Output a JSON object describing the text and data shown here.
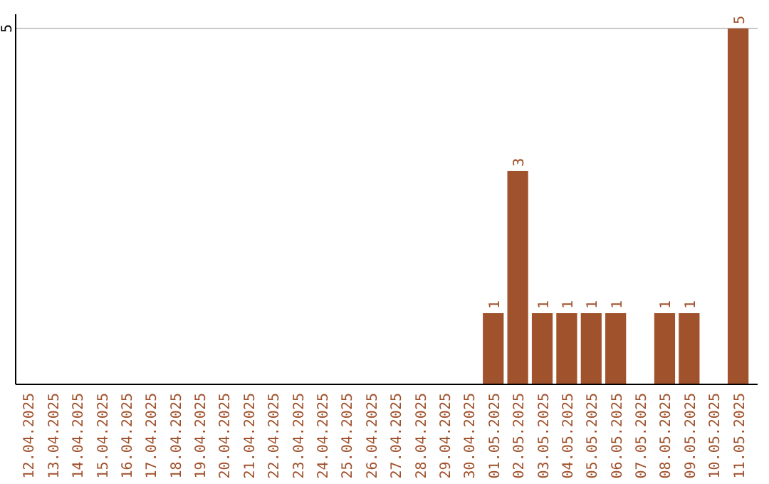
{
  "chart_data": {
    "type": "bar",
    "categories": [
      "12.04.2025",
      "13.04.2025",
      "14.04.2025",
      "15.04.2025",
      "16.04.2025",
      "17.04.2025",
      "18.04.2025",
      "19.04.2025",
      "20.04.2025",
      "21.04.2025",
      "22.04.2025",
      "23.04.2025",
      "24.04.2025",
      "25.04.2025",
      "26.04.2025",
      "27.04.2025",
      "28.04.2025",
      "29.04.2025",
      "30.04.2025",
      "01.05.2025",
      "02.05.2025",
      "03.05.2025",
      "04.05.2025",
      "05.05.2025",
      "06.05.2025",
      "07.05.2025",
      "08.05.2025",
      "09.05.2025",
      "10.05.2025",
      "11.05.2025"
    ],
    "values": [
      null,
      null,
      null,
      null,
      null,
      null,
      null,
      null,
      null,
      null,
      null,
      null,
      null,
      null,
      null,
      null,
      null,
      null,
      null,
      1,
      3,
      1,
      1,
      1,
      1,
      null,
      1,
      1,
      null,
      5
    ],
    "data_labels": true,
    "color": "#a0522d",
    "ylim": [
      0,
      5.2
    ],
    "yticks": [
      {
        "value": 0,
        "label": null
      },
      5
    ],
    "grid": "y"
  }
}
